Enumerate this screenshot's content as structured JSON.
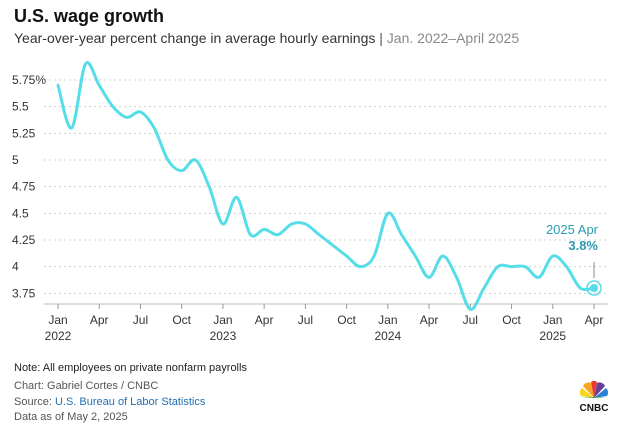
{
  "header": {
    "title": "U.S. wage growth",
    "subtitle": "Year-over-year percent change in average hourly earnings",
    "separator": "|",
    "date_range": "Jan. 2022–April 2025"
  },
  "chart_data": {
    "type": "line",
    "x": [
      "2022-01",
      "2022-02",
      "2022-03",
      "2022-04",
      "2022-05",
      "2022-06",
      "2022-07",
      "2022-08",
      "2022-09",
      "2022-10",
      "2022-11",
      "2022-12",
      "2023-01",
      "2023-02",
      "2023-03",
      "2023-04",
      "2023-05",
      "2023-06",
      "2023-07",
      "2023-08",
      "2023-09",
      "2023-10",
      "2023-11",
      "2023-12",
      "2024-01",
      "2024-02",
      "2024-03",
      "2024-04",
      "2024-05",
      "2024-06",
      "2024-07",
      "2024-08",
      "2024-09",
      "2024-10",
      "2024-11",
      "2024-12",
      "2025-01",
      "2025-02",
      "2025-03",
      "2025-04"
    ],
    "series": [
      {
        "values": [
          5.7,
          5.3,
          5.9,
          5.7,
          5.5,
          5.4,
          5.45,
          5.3,
          5.0,
          4.9,
          5.0,
          4.75,
          4.4,
          4.65,
          4.3,
          4.35,
          4.3,
          4.4,
          4.4,
          4.3,
          4.2,
          4.1,
          4.0,
          4.1,
          4.5,
          4.3,
          4.1,
          3.9,
          4.1,
          3.9,
          3.6,
          3.8,
          4.0,
          4.0,
          4.0,
          3.9,
          4.1,
          4.0,
          3.8,
          3.8
        ],
        "color": "#55dde8"
      }
    ],
    "ylim": [
      3.65,
      5.9
    ],
    "y_ticks": [
      "5.75%",
      "5.5",
      "5.25",
      "5",
      "4.75",
      "4.5",
      "4.25",
      "4",
      "3.75"
    ],
    "y_tick_values": [
      5.75,
      5.5,
      5.25,
      5,
      4.75,
      4.5,
      4.25,
      4,
      3.75
    ],
    "x_ticks": [
      {
        "index": 0,
        "label": "Jan",
        "year": "2022"
      },
      {
        "index": 3,
        "label": "Apr",
        "year": ""
      },
      {
        "index": 6,
        "label": "Jul",
        "year": ""
      },
      {
        "index": 9,
        "label": "Oct",
        "year": ""
      },
      {
        "index": 12,
        "label": "Jan",
        "year": "2023"
      },
      {
        "index": 15,
        "label": "Apr",
        "year": ""
      },
      {
        "index": 18,
        "label": "Jul",
        "year": ""
      },
      {
        "index": 21,
        "label": "Oct",
        "year": ""
      },
      {
        "index": 24,
        "label": "Jan",
        "year": "2024"
      },
      {
        "index": 27,
        "label": "Apr",
        "year": ""
      },
      {
        "index": 30,
        "label": "Jul",
        "year": ""
      },
      {
        "index": 33,
        "label": "Oct",
        "year": ""
      },
      {
        "index": 36,
        "label": "Jan",
        "year": "2025"
      },
      {
        "index": 39,
        "label": "Apr",
        "year": ""
      }
    ],
    "grid": "horizontal dashed",
    "annotation": {
      "index": 39,
      "label": "2025 Apr",
      "value": "3.8%",
      "color": "#2a9bb0"
    }
  },
  "footer": {
    "note": "Note: All employees on private nonfarm payrolls",
    "credit": "Chart: Gabriel Cortes / CNBC",
    "source_prefix": "Source: ",
    "source_link": "U.S. Bureau of Labor Statistics",
    "as_of": "Data as of May 2, 2025",
    "logo_text": "CNBC"
  }
}
